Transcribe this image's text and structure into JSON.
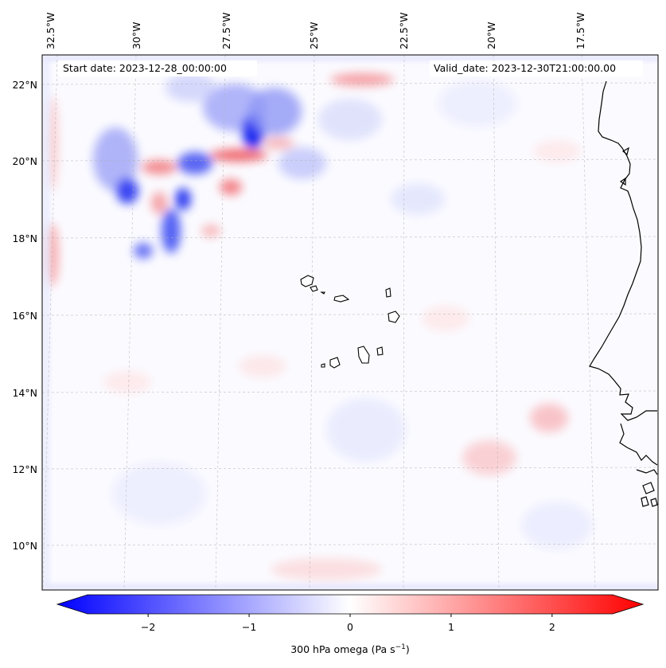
{
  "header": {
    "start_date": "Start date: 2023-12-28_00:00:00",
    "valid_date": "Valid_date: 2023-12-30T21:00:00.00"
  },
  "axes": {
    "longitude_labels": [
      "32.5°W",
      "30°W",
      "27.5°W",
      "25°W",
      "22.5°W",
      "20°W",
      "17.5°W"
    ],
    "latitude_labels": [
      "22°N",
      "20°N",
      "18°N",
      "16°N",
      "14°N",
      "12°N",
      "10°N"
    ]
  },
  "colorbar": {
    "label": "300 hPa omega (Pa s",
    "label_exponent": "−1",
    "label_close": ")",
    "ticks": [
      "−2",
      "−1",
      "0",
      "1",
      "2"
    ],
    "tick_values": [
      -2,
      -1,
      0,
      1,
      2
    ],
    "range": [
      -2.6,
      2.6
    ],
    "negative_color": "#0000ff",
    "positive_color": "#ff0000",
    "center_color": "#ffffff"
  },
  "colors": {
    "coastline": "#000000",
    "gridline": "#b0b0b0",
    "frame": "#000000"
  }
}
